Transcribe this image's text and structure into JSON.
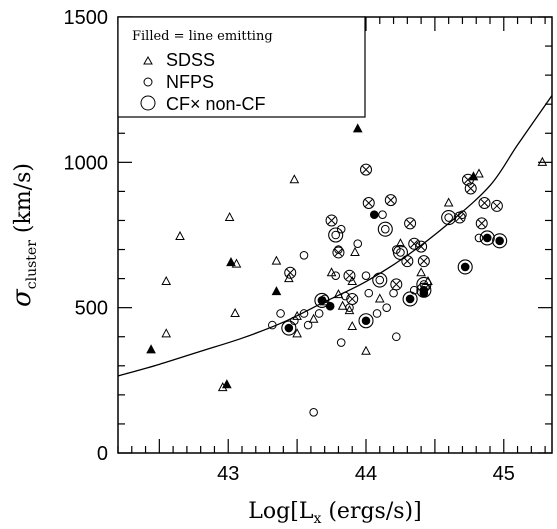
{
  "chart_data": {
    "type": "scatter",
    "xlabel_base": "Log[L",
    "xlabel_sub": "x",
    "xlabel_tail": " (ergs/s)]",
    "ylabel_sym": "σ",
    "ylabel_sub": "cluster",
    "ylabel_tail": " (km/s)",
    "xlim": [
      42.2,
      45.35
    ],
    "ylim": [
      0,
      1500
    ],
    "x_ticks": [
      {
        "value": 43,
        "label": "43"
      },
      {
        "value": 44,
        "label": "44"
      },
      {
        "value": 45,
        "label": "45"
      }
    ],
    "y_ticks": [
      {
        "value": 0,
        "label": "0"
      },
      {
        "value": 500,
        "label": "500"
      },
      {
        "value": 1000,
        "label": "1000"
      },
      {
        "value": 1500,
        "label": "1500"
      }
    ],
    "legend": {
      "placement": "top-left",
      "title": "Filled = line emitting",
      "entries": [
        {
          "marker": "triangle",
          "label": "SDSS"
        },
        {
          "marker": "circle",
          "label": "NFPS"
        },
        {
          "marker": "big-circle",
          "label": "CF× non-CF"
        }
      ]
    },
    "fit_curve": [
      [
        42.2,
        265
      ],
      [
        42.5,
        305
      ],
      [
        42.8,
        350
      ],
      [
        43.1,
        395
      ],
      [
        43.4,
        450
      ],
      [
        43.7,
        520
      ],
      [
        44.0,
        590
      ],
      [
        44.3,
        680
      ],
      [
        44.6,
        790
      ],
      [
        44.9,
        920
      ],
      [
        45.1,
        1060
      ],
      [
        45.35,
        1230
      ]
    ],
    "series": [
      {
        "name": "SDSS",
        "marker": "triangle",
        "points": [
          [
            42.44,
            355,
            true
          ],
          [
            42.55,
            410,
            false
          ],
          [
            42.55,
            590,
            false
          ],
          [
            42.65,
            745,
            false
          ],
          [
            42.96,
            225,
            false
          ],
          [
            42.99,
            235,
            true
          ],
          [
            43.01,
            810,
            false
          ],
          [
            43.02,
            655,
            true
          ],
          [
            43.06,
            650,
            false
          ],
          [
            43.05,
            480,
            false
          ],
          [
            43.35,
            660,
            false
          ],
          [
            43.35,
            555,
            true
          ],
          [
            43.44,
            600,
            false
          ],
          [
            43.48,
            940,
            false
          ],
          [
            43.5,
            410,
            false
          ],
          [
            43.5,
            470,
            false
          ],
          [
            43.62,
            460,
            false
          ],
          [
            43.7,
            520,
            false
          ],
          [
            43.75,
            620,
            false
          ],
          [
            43.8,
            545,
            false
          ],
          [
            43.83,
            505,
            false
          ],
          [
            43.88,
            490,
            false
          ],
          [
            43.9,
            590,
            false
          ],
          [
            43.92,
            690,
            false
          ],
          [
            43.94,
            1115,
            true
          ],
          [
            43.9,
            435,
            false
          ],
          [
            44.0,
            350,
            false
          ],
          [
            44.1,
            530,
            false
          ],
          [
            44.25,
            720,
            false
          ],
          [
            44.4,
            620,
            false
          ],
          [
            44.45,
            590,
            false
          ],
          [
            44.6,
            860,
            false
          ],
          [
            44.78,
            950,
            true
          ],
          [
            44.82,
            960,
            false
          ],
          [
            45.28,
            1000,
            false
          ]
        ]
      },
      {
        "name": "NFPS",
        "marker": "circle",
        "points": [
          [
            43.32,
            440,
            false
          ],
          [
            43.38,
            480,
            false
          ],
          [
            43.48,
            455,
            false
          ],
          [
            43.55,
            680,
            false
          ],
          [
            43.55,
            480,
            false
          ],
          [
            43.58,
            440,
            false
          ],
          [
            43.62,
            140,
            false
          ],
          [
            43.66,
            480,
            false
          ],
          [
            43.7,
            530,
            false
          ],
          [
            43.74,
            505,
            true
          ],
          [
            43.78,
            610,
            false
          ],
          [
            43.8,
            700,
            false
          ],
          [
            43.82,
            770,
            false
          ],
          [
            43.82,
            380,
            false
          ],
          [
            43.85,
            540,
            false
          ],
          [
            43.88,
            500,
            false
          ],
          [
            43.94,
            720,
            false
          ],
          [
            44.0,
            610,
            false
          ],
          [
            44.02,
            550,
            false
          ],
          [
            44.06,
            820,
            true
          ],
          [
            44.08,
            480,
            false
          ],
          [
            44.12,
            820,
            false
          ],
          [
            44.15,
            500,
            false
          ],
          [
            44.2,
            550,
            false
          ],
          [
            44.22,
            700,
            false
          ],
          [
            44.22,
            400,
            false
          ],
          [
            44.35,
            560,
            false
          ],
          [
            44.42,
            550,
            true
          ],
          [
            44.43,
            570,
            false
          ],
          [
            44.7,
            820,
            false
          ],
          [
            44.82,
            740,
            false
          ]
        ]
      },
      {
        "name": "CF× non-CF",
        "marker": "big-circle",
        "points": [
          [
            43.44,
            430,
            true
          ],
          [
            43.68,
            525,
            true
          ],
          [
            43.78,
            750,
            false
          ],
          [
            44.0,
            455,
            true
          ],
          [
            44.1,
            595,
            false
          ],
          [
            44.14,
            770,
            false
          ],
          [
            44.25,
            690,
            false
          ],
          [
            44.32,
            530,
            true
          ],
          [
            44.42,
            580,
            false
          ],
          [
            44.42,
            560,
            true
          ],
          [
            44.6,
            810,
            false
          ],
          [
            44.72,
            640,
            true
          ],
          [
            44.88,
            740,
            true
          ],
          [
            44.97,
            730,
            true
          ]
        ]
      },
      {
        "name": "CF",
        "marker": "circle-x",
        "points": [
          [
            43.45,
            620,
            false
          ],
          [
            43.75,
            800,
            false
          ],
          [
            43.8,
            690,
            false
          ],
          [
            43.88,
            610,
            false
          ],
          [
            43.9,
            530,
            false
          ],
          [
            44.0,
            975,
            false
          ],
          [
            44.02,
            860,
            false
          ],
          [
            44.18,
            870,
            false
          ],
          [
            44.22,
            580,
            false
          ],
          [
            44.3,
            660,
            false
          ],
          [
            44.32,
            790,
            false
          ],
          [
            44.35,
            720,
            false
          ],
          [
            44.4,
            710,
            false
          ],
          [
            44.42,
            660,
            false
          ],
          [
            44.68,
            810,
            false
          ],
          [
            44.74,
            940,
            false
          ],
          [
            44.76,
            910,
            false
          ],
          [
            44.84,
            790,
            false
          ],
          [
            44.86,
            860,
            false
          ],
          [
            44.95,
            850,
            false
          ]
        ]
      }
    ]
  }
}
